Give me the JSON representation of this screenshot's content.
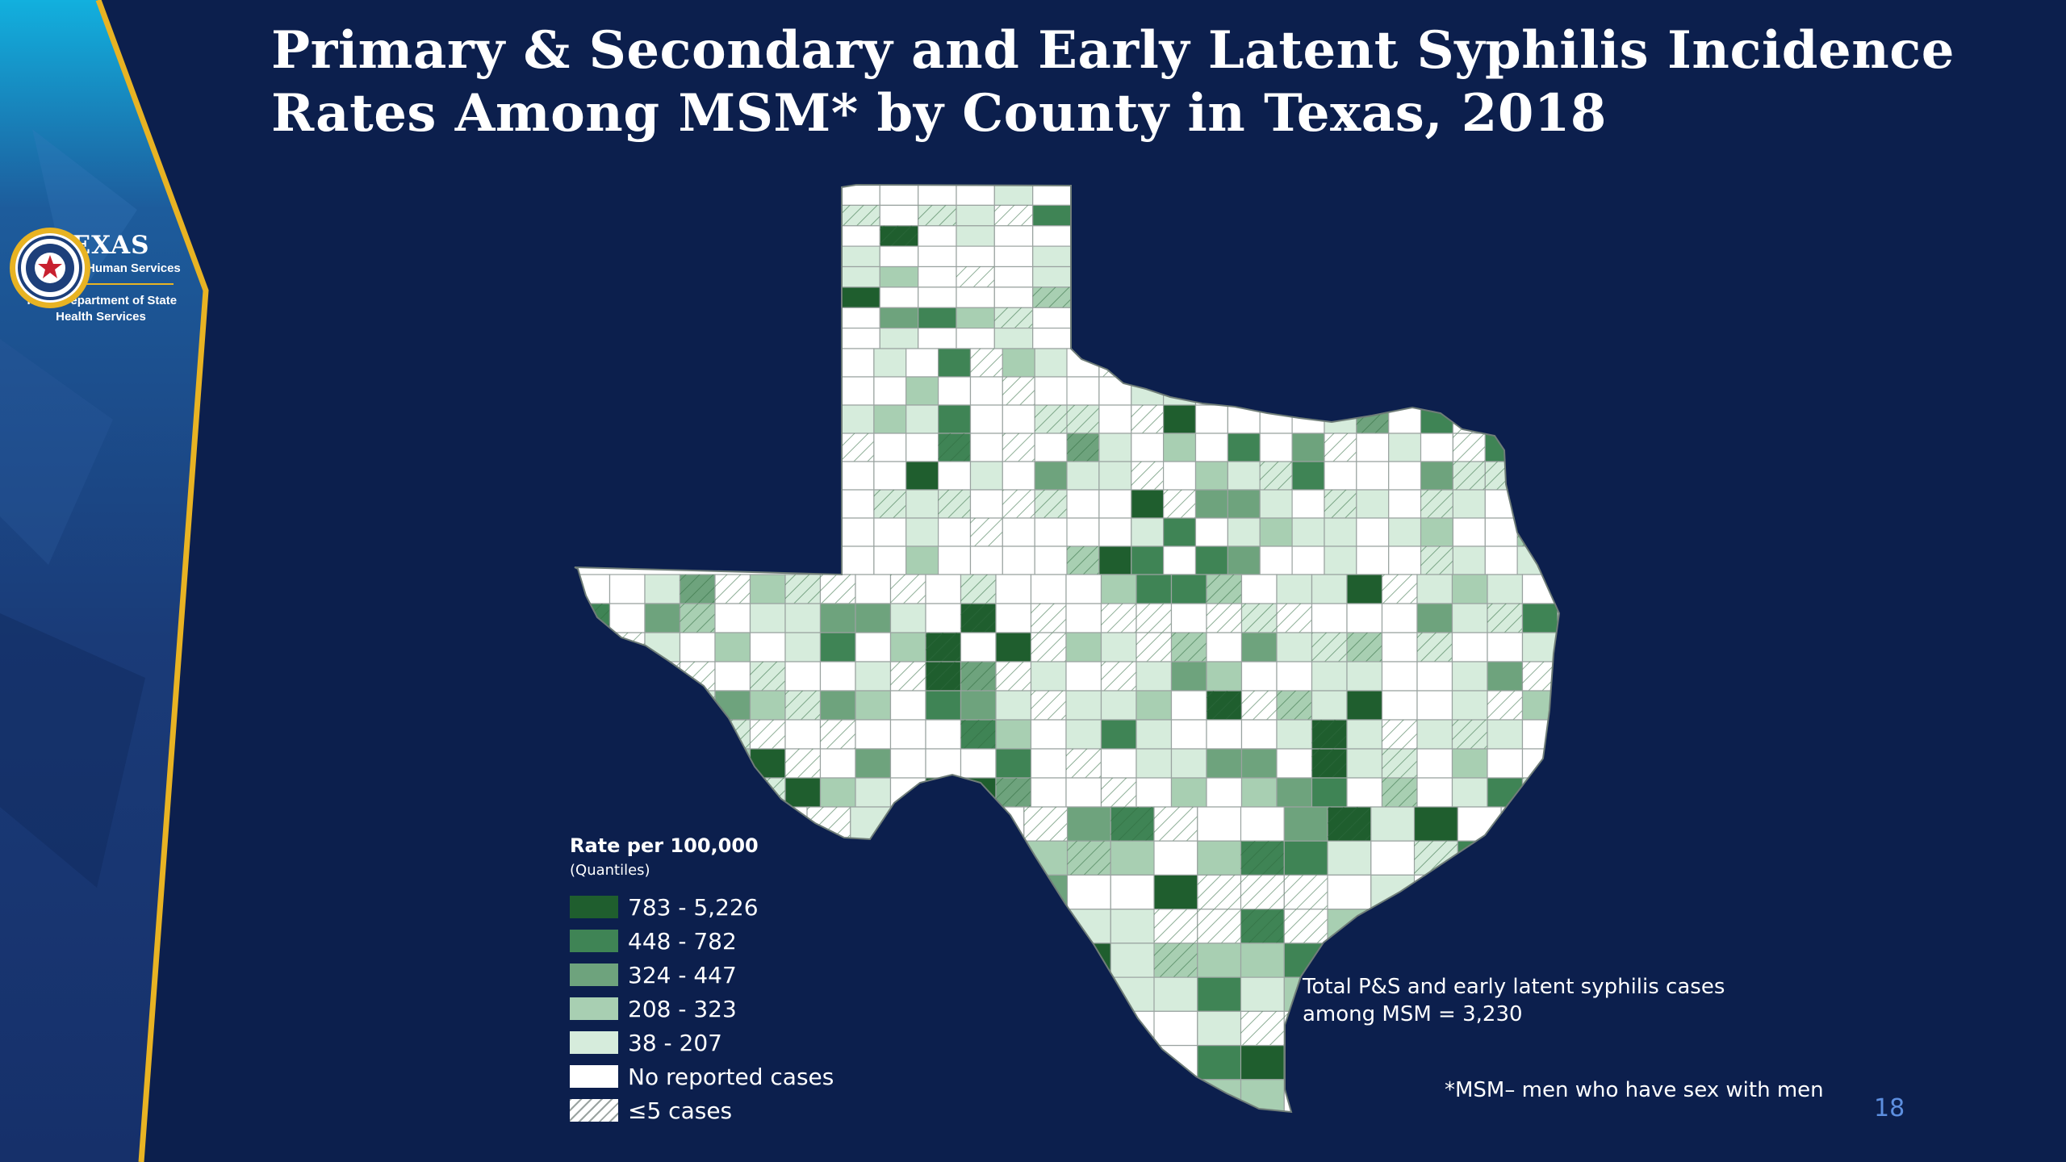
{
  "title": {
    "line1": "Primary & Secondary and Early Latent Syphilis Incidence",
    "line2": "Rates Among MSM* by County in Texas, 2018"
  },
  "branding": {
    "org_main": "TEXAS",
    "org_sub": "Health and Human Services",
    "org_dept": "Texas Department of State Health Services",
    "logo_icon": "texas-star-seal",
    "accent_color": "#e8b323"
  },
  "legend": {
    "title": "Rate per 100,000",
    "subtitle": "(Quantiles)",
    "items": [
      {
        "label": "783 - 5,226",
        "color": "#1f5e2e",
        "hatched": false
      },
      {
        "label": "448 - 782",
        "color": "#3f8455",
        "hatched": false
      },
      {
        "label": "324 - 447",
        "color": "#6ea37d",
        "hatched": false
      },
      {
        "label": "208 - 323",
        "color": "#a8cfb2",
        "hatched": false
      },
      {
        "label": "38 - 207",
        "color": "#d6ecdc",
        "hatched": false
      },
      {
        "label": "No reported cases",
        "color": "#ffffff",
        "hatched": false
      },
      {
        "label": "≤5 cases",
        "color": "#ffffff",
        "hatched": true
      }
    ]
  },
  "notes": {
    "total": "Total P&S and early latent syphilis cases among MSM = 3,230",
    "footnote": "*MSM– men who have sex with men"
  },
  "slide_number": "18",
  "colors": {
    "background": "#0c1f4d",
    "county_border": "#9aa3a0",
    "slide_number": "#5d8fe0"
  }
}
